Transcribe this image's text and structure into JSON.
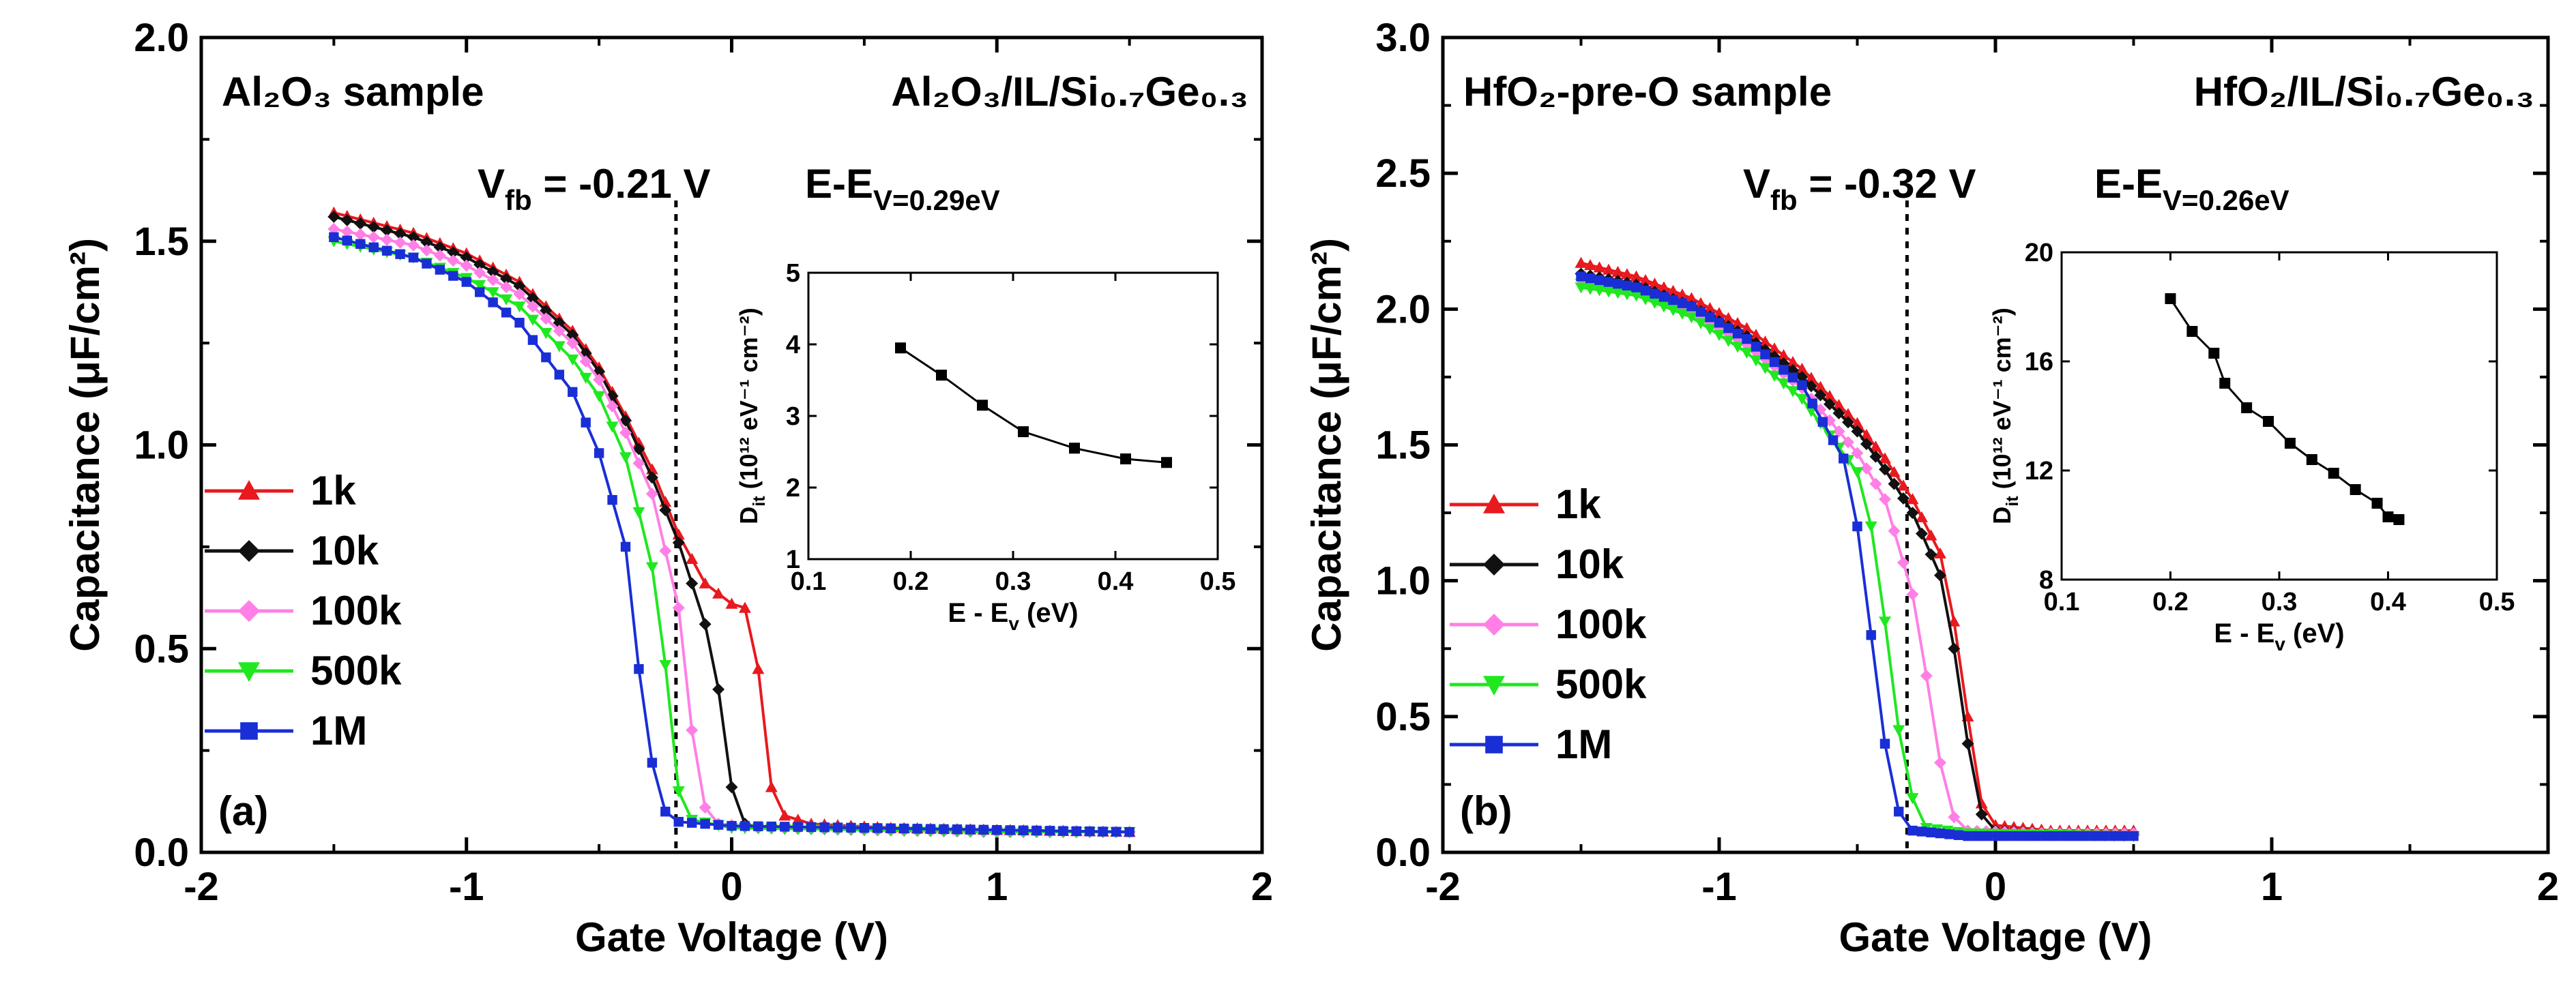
{
  "chart_data": [
    {
      "type": "line",
      "panel_label": "(a)",
      "sample_label": "Al₂O₃ sample",
      "stack_label": "Al₂O₃/IL/Si₀.₇Ge₀.₃",
      "vfb_text": "V_fb = -0.21 V",
      "energy_text": "E-E_V=0.29eV",
      "vfb_value": -0.21,
      "xlabel": "Gate Voltage (V)",
      "ylabel": "Capacitance (μF/cm²)",
      "xlim": [
        -2,
        2
      ],
      "ylim": [
        0,
        2.0
      ],
      "xticks": [
        -2,
        -1,
        0,
        1,
        2
      ],
      "xtick_labels": [
        "-2",
        "-1",
        "0",
        "1",
        "2"
      ],
      "yticks": [
        0,
        0.5,
        1.0,
        1.5,
        2.0
      ],
      "ytick_labels": [
        "0.0",
        "0.5",
        "1.0",
        "1.5",
        "2.0"
      ],
      "legend_position": "center-left",
      "series": [
        {
          "name": "1k",
          "color": "#e8191f",
          "marker": "triangle",
          "points": [
            [
              -1.5,
              1.57
            ],
            [
              -1.2,
              1.52
            ],
            [
              -1.0,
              1.47
            ],
            [
              -0.8,
              1.4
            ],
            [
              -0.6,
              1.28
            ],
            [
              -0.5,
              1.19
            ],
            [
              -0.4,
              1.07
            ],
            [
              -0.3,
              0.94
            ],
            [
              -0.2,
              0.78
            ],
            [
              -0.1,
              0.66
            ],
            [
              0.0,
              0.61
            ],
            [
              0.05,
              0.6
            ],
            [
              0.1,
              0.45
            ],
            [
              0.15,
              0.16
            ],
            [
              0.2,
              0.09
            ],
            [
              0.3,
              0.07
            ],
            [
              0.6,
              0.06
            ],
            [
              1.0,
              0.055
            ],
            [
              1.5,
              0.05
            ]
          ]
        },
        {
          "name": "10k",
          "color": "#111111",
          "marker": "diamond",
          "points": [
            [
              -1.5,
              1.56
            ],
            [
              -1.2,
              1.51
            ],
            [
              -1.0,
              1.46
            ],
            [
              -0.8,
              1.39
            ],
            [
              -0.6,
              1.27
            ],
            [
              -0.5,
              1.18
            ],
            [
              -0.4,
              1.06
            ],
            [
              -0.3,
              0.92
            ],
            [
              -0.2,
              0.76
            ],
            [
              -0.1,
              0.56
            ],
            [
              -0.05,
              0.4
            ],
            [
              0.0,
              0.16
            ],
            [
              0.05,
              0.07
            ],
            [
              0.1,
              0.06
            ],
            [
              0.5,
              0.055
            ],
            [
              1.0,
              0.05
            ],
            [
              1.5,
              0.05
            ]
          ]
        },
        {
          "name": "100k",
          "color": "#ff7fe6",
          "marker": "diamond",
          "points": [
            [
              -1.5,
              1.53
            ],
            [
              -1.2,
              1.49
            ],
            [
              -1.0,
              1.44
            ],
            [
              -0.8,
              1.37
            ],
            [
              -0.6,
              1.25
            ],
            [
              -0.5,
              1.16
            ],
            [
              -0.4,
              1.03
            ],
            [
              -0.3,
              0.88
            ],
            [
              -0.2,
              0.6
            ],
            [
              -0.15,
              0.3
            ],
            [
              -0.1,
              0.11
            ],
            [
              -0.05,
              0.07
            ],
            [
              0.1,
              0.06
            ],
            [
              0.5,
              0.055
            ],
            [
              1.0,
              0.05
            ],
            [
              1.5,
              0.05
            ]
          ]
        },
        {
          "name": "500k",
          "color": "#1fe81f",
          "marker": "triangle-down",
          "points": [
            [
              -1.5,
              1.5
            ],
            [
              -1.2,
              1.46
            ],
            [
              -1.0,
              1.41
            ],
            [
              -0.8,
              1.34
            ],
            [
              -0.6,
              1.21
            ],
            [
              -0.5,
              1.12
            ],
            [
              -0.4,
              0.97
            ],
            [
              -0.3,
              0.7
            ],
            [
              -0.25,
              0.46
            ],
            [
              -0.2,
              0.15
            ],
            [
              -0.15,
              0.08
            ],
            [
              0.0,
              0.06
            ],
            [
              0.5,
              0.055
            ],
            [
              1.0,
              0.05
            ],
            [
              1.5,
              0.05
            ]
          ]
        },
        {
          "name": "1M",
          "color": "#1a2ed6",
          "marker": "square",
          "points": [
            [
              -1.5,
              1.51
            ],
            [
              -1.2,
              1.46
            ],
            [
              -1.0,
              1.4
            ],
            [
              -0.8,
              1.3
            ],
            [
              -0.6,
              1.13
            ],
            [
              -0.5,
              0.98
            ],
            [
              -0.4,
              0.75
            ],
            [
              -0.35,
              0.45
            ],
            [
              -0.3,
              0.22
            ],
            [
              -0.25,
              0.1
            ],
            [
              -0.2,
              0.075
            ],
            [
              0.0,
              0.065
            ],
            [
              0.5,
              0.06
            ],
            [
              1.0,
              0.055
            ],
            [
              1.5,
              0.05
            ]
          ]
        }
      ],
      "inset": {
        "xlabel": "E - E_v (eV)",
        "ylabel": "D_it (10¹² eV⁻¹ cm⁻²)",
        "xlim": [
          0.1,
          0.5
        ],
        "ylim": [
          1,
          5
        ],
        "xticks": [
          0.1,
          0.2,
          0.3,
          0.4,
          0.5
        ],
        "xtick_labels": [
          "0.1",
          "0.2",
          "0.3",
          "0.4",
          "0.5"
        ],
        "yticks": [
          1,
          2,
          3,
          4,
          5
        ],
        "ytick_labels": [
          "1",
          "2",
          "3",
          "4",
          "5"
        ],
        "points": [
          [
            0.19,
            3.95
          ],
          [
            0.23,
            3.57
          ],
          [
            0.27,
            3.15
          ],
          [
            0.31,
            2.78
          ],
          [
            0.36,
            2.55
          ],
          [
            0.41,
            2.4
          ],
          [
            0.45,
            2.35
          ]
        ]
      }
    },
    {
      "type": "line",
      "panel_label": "(b)",
      "sample_label": "HfO₂-pre-O sample",
      "stack_label": "HfO₂/IL/Si₀.₇Ge₀.₃",
      "vfb_text": "V_fb = -0.32 V",
      "energy_text": "E-E_V=0.26eV",
      "vfb_value": -0.32,
      "xlabel": "Gate Voltage (V)",
      "ylabel": "Capacitance (μF/cm²)",
      "xlim": [
        -2,
        2
      ],
      "ylim": [
        0,
        3.0
      ],
      "xticks": [
        -2,
        -1,
        0,
        1,
        2
      ],
      "xtick_labels": [
        "-2",
        "-1",
        "0",
        "1",
        "2"
      ],
      "yticks": [
        0,
        0.5,
        1.0,
        1.5,
        2.0,
        2.5,
        3.0
      ],
      "ytick_labels": [
        "0.0",
        "0.5",
        "1.0",
        "1.5",
        "2.0",
        "2.5",
        "3.0"
      ],
      "legend_position": "center-left",
      "series": [
        {
          "name": "1k",
          "color": "#e8191f",
          "marker": "triangle",
          "points": [
            [
              -1.5,
              2.17
            ],
            [
              -1.3,
              2.12
            ],
            [
              -1.1,
              2.04
            ],
            [
              -0.9,
              1.93
            ],
            [
              -0.7,
              1.78
            ],
            [
              -0.5,
              1.58
            ],
            [
              -0.4,
              1.45
            ],
            [
              -0.3,
              1.3
            ],
            [
              -0.2,
              1.1
            ],
            [
              -0.15,
              0.85
            ],
            [
              -0.1,
              0.5
            ],
            [
              -0.05,
              0.18
            ],
            [
              0.0,
              0.1
            ],
            [
              0.2,
              0.08
            ],
            [
              0.5,
              0.08
            ]
          ]
        },
        {
          "name": "10k",
          "color": "#111111",
          "marker": "diamond",
          "points": [
            [
              -1.5,
              2.13
            ],
            [
              -1.3,
              2.09
            ],
            [
              -1.1,
              2.01
            ],
            [
              -0.9,
              1.9
            ],
            [
              -0.7,
              1.75
            ],
            [
              -0.5,
              1.55
            ],
            [
              -0.4,
              1.41
            ],
            [
              -0.3,
              1.25
            ],
            [
              -0.2,
              1.02
            ],
            [
              -0.15,
              0.75
            ],
            [
              -0.1,
              0.4
            ],
            [
              -0.05,
              0.14
            ],
            [
              0.0,
              0.08
            ],
            [
              0.2,
              0.07
            ],
            [
              0.5,
              0.07
            ]
          ]
        },
        {
          "name": "100k",
          "color": "#ff7fe6",
          "marker": "diamond",
          "points": [
            [
              -1.5,
              2.11
            ],
            [
              -1.3,
              2.07
            ],
            [
              -1.1,
              1.99
            ],
            [
              -0.9,
              1.87
            ],
            [
              -0.7,
              1.71
            ],
            [
              -0.5,
              1.47
            ],
            [
              -0.4,
              1.3
            ],
            [
              -0.3,
              0.95
            ],
            [
              -0.25,
              0.65
            ],
            [
              -0.2,
              0.33
            ],
            [
              -0.15,
              0.13
            ],
            [
              -0.1,
              0.08
            ],
            [
              0.2,
              0.07
            ],
            [
              0.5,
              0.07
            ]
          ]
        },
        {
          "name": "500k",
          "color": "#1fe81f",
          "marker": "triangle-down",
          "points": [
            [
              -1.5,
              2.08
            ],
            [
              -1.3,
              2.05
            ],
            [
              -1.1,
              1.97
            ],
            [
              -0.9,
              1.84
            ],
            [
              -0.7,
              1.67
            ],
            [
              -0.5,
              1.4
            ],
            [
              -0.45,
              1.2
            ],
            [
              -0.4,
              0.85
            ],
            [
              -0.35,
              0.45
            ],
            [
              -0.3,
              0.2
            ],
            [
              -0.25,
              0.09
            ],
            [
              -0.1,
              0.07
            ],
            [
              0.5,
              0.06
            ]
          ]
        },
        {
          "name": "1M",
          "color": "#1a2ed6",
          "marker": "square",
          "points": [
            [
              -1.5,
              2.12
            ],
            [
              -1.3,
              2.08
            ],
            [
              -1.1,
              2.01
            ],
            [
              -0.9,
              1.89
            ],
            [
              -0.7,
              1.72
            ],
            [
              -0.55,
              1.45
            ],
            [
              -0.5,
              1.2
            ],
            [
              -0.45,
              0.8
            ],
            [
              -0.4,
              0.4
            ],
            [
              -0.35,
              0.15
            ],
            [
              -0.3,
              0.08
            ],
            [
              -0.1,
              0.06
            ],
            [
              0.5,
              0.06
            ]
          ]
        }
      ],
      "inset": {
        "xlabel": "E - E_v (eV)",
        "ylabel": "D_it (10¹² eV⁻¹ cm⁻²)",
        "xlim": [
          0.1,
          0.5
        ],
        "ylim": [
          8,
          20
        ],
        "xticks": [
          0.1,
          0.2,
          0.3,
          0.4,
          0.5
        ],
        "xtick_labels": [
          "0.1",
          "0.2",
          "0.3",
          "0.4",
          "0.5"
        ],
        "yticks": [
          8,
          12,
          16,
          20
        ],
        "ytick_labels": [
          "8",
          "12",
          "16",
          "20"
        ],
        "points": [
          [
            0.2,
            18.3
          ],
          [
            0.22,
            17.1
          ],
          [
            0.24,
            16.3
          ],
          [
            0.25,
            15.2
          ],
          [
            0.27,
            14.3
          ],
          [
            0.29,
            13.8
          ],
          [
            0.31,
            13.0
          ],
          [
            0.33,
            12.4
          ],
          [
            0.35,
            11.9
          ],
          [
            0.37,
            11.3
          ],
          [
            0.39,
            10.8
          ],
          [
            0.4,
            10.3
          ],
          [
            0.41,
            10.2
          ]
        ]
      }
    }
  ]
}
